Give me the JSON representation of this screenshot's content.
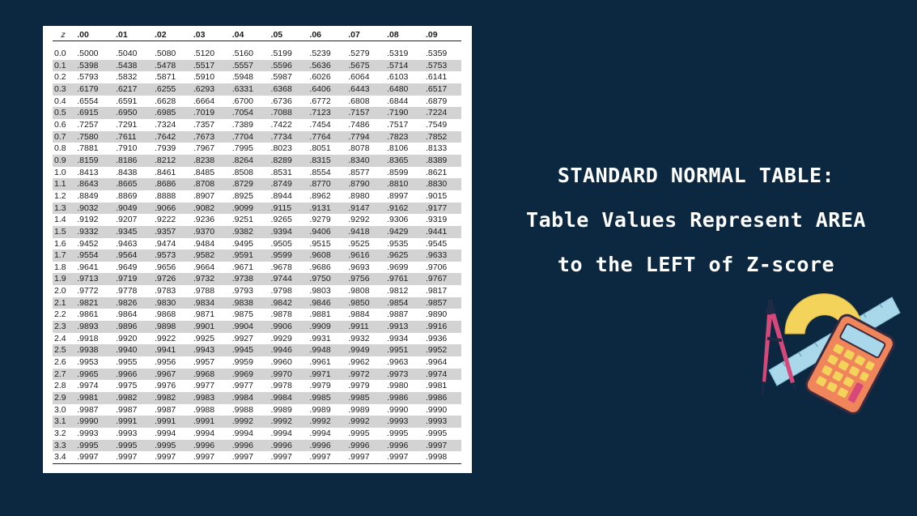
{
  "table": {
    "headers": [
      "z",
      ".00",
      ".01",
      ".02",
      ".03",
      ".04",
      ".05",
      ".06",
      ".07",
      ".08",
      ".09"
    ],
    "rows": [
      [
        "0.0",
        ".5000",
        ".5040",
        ".5080",
        ".5120",
        ".5160",
        ".5199",
        ".5239",
        ".5279",
        ".5319",
        ".5359"
      ],
      [
        "0.1",
        ".5398",
        ".5438",
        ".5478",
        ".5517",
        ".5557",
        ".5596",
        ".5636",
        ".5675",
        ".5714",
        ".5753"
      ],
      [
        "0.2",
        ".5793",
        ".5832",
        ".5871",
        ".5910",
        ".5948",
        ".5987",
        ".6026",
        ".6064",
        ".6103",
        ".6141"
      ],
      [
        "0.3",
        ".6179",
        ".6217",
        ".6255",
        ".6293",
        ".6331",
        ".6368",
        ".6406",
        ".6443",
        ".6480",
        ".6517"
      ],
      [
        "0.4",
        ".6554",
        ".6591",
        ".6628",
        ".6664",
        ".6700",
        ".6736",
        ".6772",
        ".6808",
        ".6844",
        ".6879"
      ],
      [
        "0.5",
        ".6915",
        ".6950",
        ".6985",
        ".7019",
        ".7054",
        ".7088",
        ".7123",
        ".7157",
        ".7190",
        ".7224"
      ],
      [
        "0.6",
        ".7257",
        ".7291",
        ".7324",
        ".7357",
        ".7389",
        ".7422",
        ".7454",
        ".7486",
        ".7517",
        ".7549"
      ],
      [
        "0.7",
        ".7580",
        ".7611",
        ".7642",
        ".7673",
        ".7704",
        ".7734",
        ".7764",
        ".7794",
        ".7823",
        ".7852"
      ],
      [
        "0.8",
        ".7881",
        ".7910",
        ".7939",
        ".7967",
        ".7995",
        ".8023",
        ".8051",
        ".8078",
        ".8106",
        ".8133"
      ],
      [
        "0.9",
        ".8159",
        ".8186",
        ".8212",
        ".8238",
        ".8264",
        ".8289",
        ".8315",
        ".8340",
        ".8365",
        ".8389"
      ],
      [
        "1.0",
        ".8413",
        ".8438",
        ".8461",
        ".8485",
        ".8508",
        ".8531",
        ".8554",
        ".8577",
        ".8599",
        ".8621"
      ],
      [
        "1.1",
        ".8643",
        ".8665",
        ".8686",
        ".8708",
        ".8729",
        ".8749",
        ".8770",
        ".8790",
        ".8810",
        ".8830"
      ],
      [
        "1.2",
        ".8849",
        ".8869",
        ".8888",
        ".8907",
        ".8925",
        ".8944",
        ".8962",
        ".8980",
        ".8997",
        ".9015"
      ],
      [
        "1.3",
        ".9032",
        ".9049",
        ".9066",
        ".9082",
        ".9099",
        ".9115",
        ".9131",
        ".9147",
        ".9162",
        ".9177"
      ],
      [
        "1.4",
        ".9192",
        ".9207",
        ".9222",
        ".9236",
        ".9251",
        ".9265",
        ".9279",
        ".9292",
        ".9306",
        ".9319"
      ],
      [
        "1.5",
        ".9332",
        ".9345",
        ".9357",
        ".9370",
        ".9382",
        ".9394",
        ".9406",
        ".9418",
        ".9429",
        ".9441"
      ],
      [
        "1.6",
        ".9452",
        ".9463",
        ".9474",
        ".9484",
        ".9495",
        ".9505",
        ".9515",
        ".9525",
        ".9535",
        ".9545"
      ],
      [
        "1.7",
        ".9554",
        ".9564",
        ".9573",
        ".9582",
        ".9591",
        ".9599",
        ".9608",
        ".9616",
        ".9625",
        ".9633"
      ],
      [
        "1.8",
        ".9641",
        ".9649",
        ".9656",
        ".9664",
        ".9671",
        ".9678",
        ".9686",
        ".9693",
        ".9699",
        ".9706"
      ],
      [
        "1.9",
        ".9713",
        ".9719",
        ".9726",
        ".9732",
        ".9738",
        ".9744",
        ".9750",
        ".9756",
        ".9761",
        ".9767"
      ],
      [
        "2.0",
        ".9772",
        ".9778",
        ".9783",
        ".9788",
        ".9793",
        ".9798",
        ".9803",
        ".9808",
        ".9812",
        ".9817"
      ],
      [
        "2.1",
        ".9821",
        ".9826",
        ".9830",
        ".9834",
        ".9838",
        ".9842",
        ".9846",
        ".9850",
        ".9854",
        ".9857"
      ],
      [
        "2.2",
        ".9861",
        ".9864",
        ".9868",
        ".9871",
        ".9875",
        ".9878",
        ".9881",
        ".9884",
        ".9887",
        ".9890"
      ],
      [
        "2.3",
        ".9893",
        ".9896",
        ".9898",
        ".9901",
        ".9904",
        ".9906",
        ".9909",
        ".9911",
        ".9913",
        ".9916"
      ],
      [
        "2.4",
        ".9918",
        ".9920",
        ".9922",
        ".9925",
        ".9927",
        ".9929",
        ".9931",
        ".9932",
        ".9934",
        ".9936"
      ],
      [
        "2.5",
        ".9938",
        ".9940",
        ".9941",
        ".9943",
        ".9945",
        ".9946",
        ".9948",
        ".9949",
        ".9951",
        ".9952"
      ],
      [
        "2.6",
        ".9953",
        ".9955",
        ".9956",
        ".9957",
        ".9959",
        ".9960",
        ".9961",
        ".9962",
        ".9963",
        ".9964"
      ],
      [
        "2.7",
        ".9965",
        ".9966",
        ".9967",
        ".9968",
        ".9969",
        ".9970",
        ".9971",
        ".9972",
        ".9973",
        ".9974"
      ],
      [
        "2.8",
        ".9974",
        ".9975",
        ".9976",
        ".9977",
        ".9977",
        ".9978",
        ".9979",
        ".9979",
        ".9980",
        ".9981"
      ],
      [
        "2.9",
        ".9981",
        ".9982",
        ".9982",
        ".9983",
        ".9984",
        ".9984",
        ".9985",
        ".9985",
        ".9986",
        ".9986"
      ],
      [
        "3.0",
        ".9987",
        ".9987",
        ".9987",
        ".9988",
        ".9988",
        ".9989",
        ".9989",
        ".9989",
        ".9990",
        ".9990"
      ],
      [
        "3.1",
        ".9990",
        ".9991",
        ".9991",
        ".9991",
        ".9992",
        ".9992",
        ".9992",
        ".9992",
        ".9993",
        ".9993"
      ],
      [
        "3.2",
        ".9993",
        ".9993",
        ".9994",
        ".9994",
        ".9994",
        ".9994",
        ".9994",
        ".9995",
        ".9995",
        ".9995"
      ],
      [
        "3.3",
        ".9995",
        ".9995",
        ".9995",
        ".9996",
        ".9996",
        ".9996",
        ".9996",
        ".9996",
        ".9996",
        ".9997"
      ],
      [
        "3.4",
        ".9997",
        ".9997",
        ".9997",
        ".9997",
        ".9997",
        ".9997",
        ".9997",
        ".9997",
        ".9997",
        ".9998"
      ]
    ]
  },
  "title": {
    "line1": "STANDARD NORMAL TABLE:",
    "line2": "Table Values Represent AREA",
    "line3": "to the LEFT of Z-score"
  },
  "illustration": {
    "icons": [
      "compass-icon",
      "protractor-icon",
      "ruler-icon",
      "calculator-icon"
    ]
  },
  "colors": {
    "background": "#0c2740",
    "table_stripe": "#d3d3d3",
    "title_text": "#ffffff",
    "calculator": "#f0845a",
    "protractor": "#f3d35a",
    "ruler": "#a9d8ea",
    "compass": "#d6477a"
  }
}
